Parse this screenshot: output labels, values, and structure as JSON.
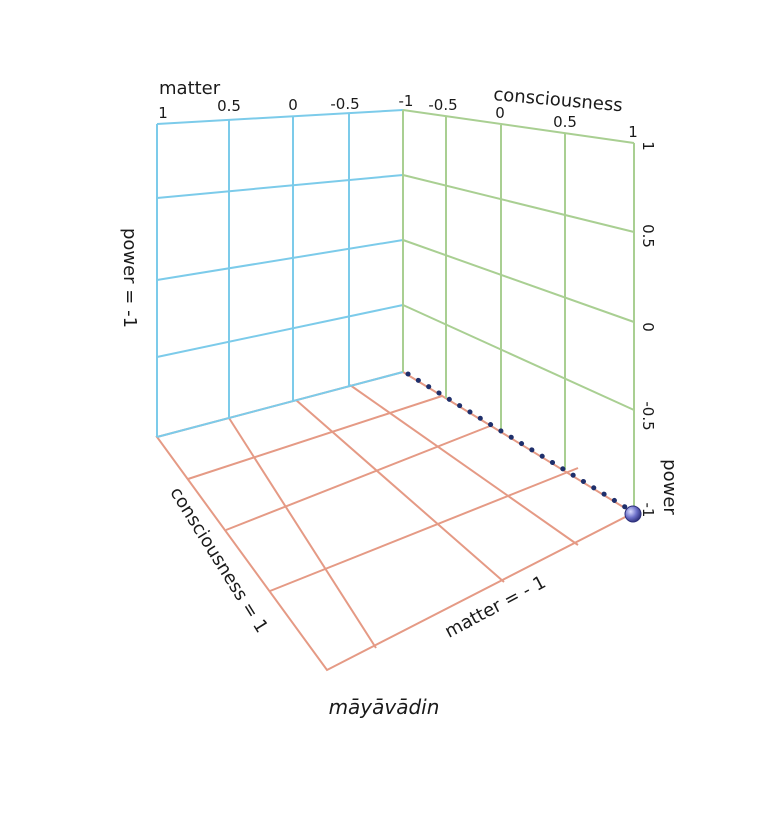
{
  "back_wall": {
    "axis_title": "matter",
    "ticks": [
      "1",
      "0.5",
      "0",
      "-0.5",
      "-1"
    ],
    "side_label": "power = -1"
  },
  "right_wall": {
    "axis_title": "consciousness",
    "ticks": [
      "-0.5",
      "0",
      "0.5",
      "1"
    ]
  },
  "power_axis": {
    "axis_title": "power",
    "ticks": [
      "1",
      "0.5",
      "0",
      "-0.5",
      "-1"
    ]
  },
  "floor": {
    "left_label": "consciousness = 1",
    "front_label": "matter = - 1"
  },
  "caption": "māyāvādin",
  "colors": {
    "back_wall": "#7ccbea",
    "right_wall": "#a9cf92",
    "floor": "#e59a85",
    "dotted_line": "#1f2f6b",
    "marker": "#6b6fc8"
  }
}
